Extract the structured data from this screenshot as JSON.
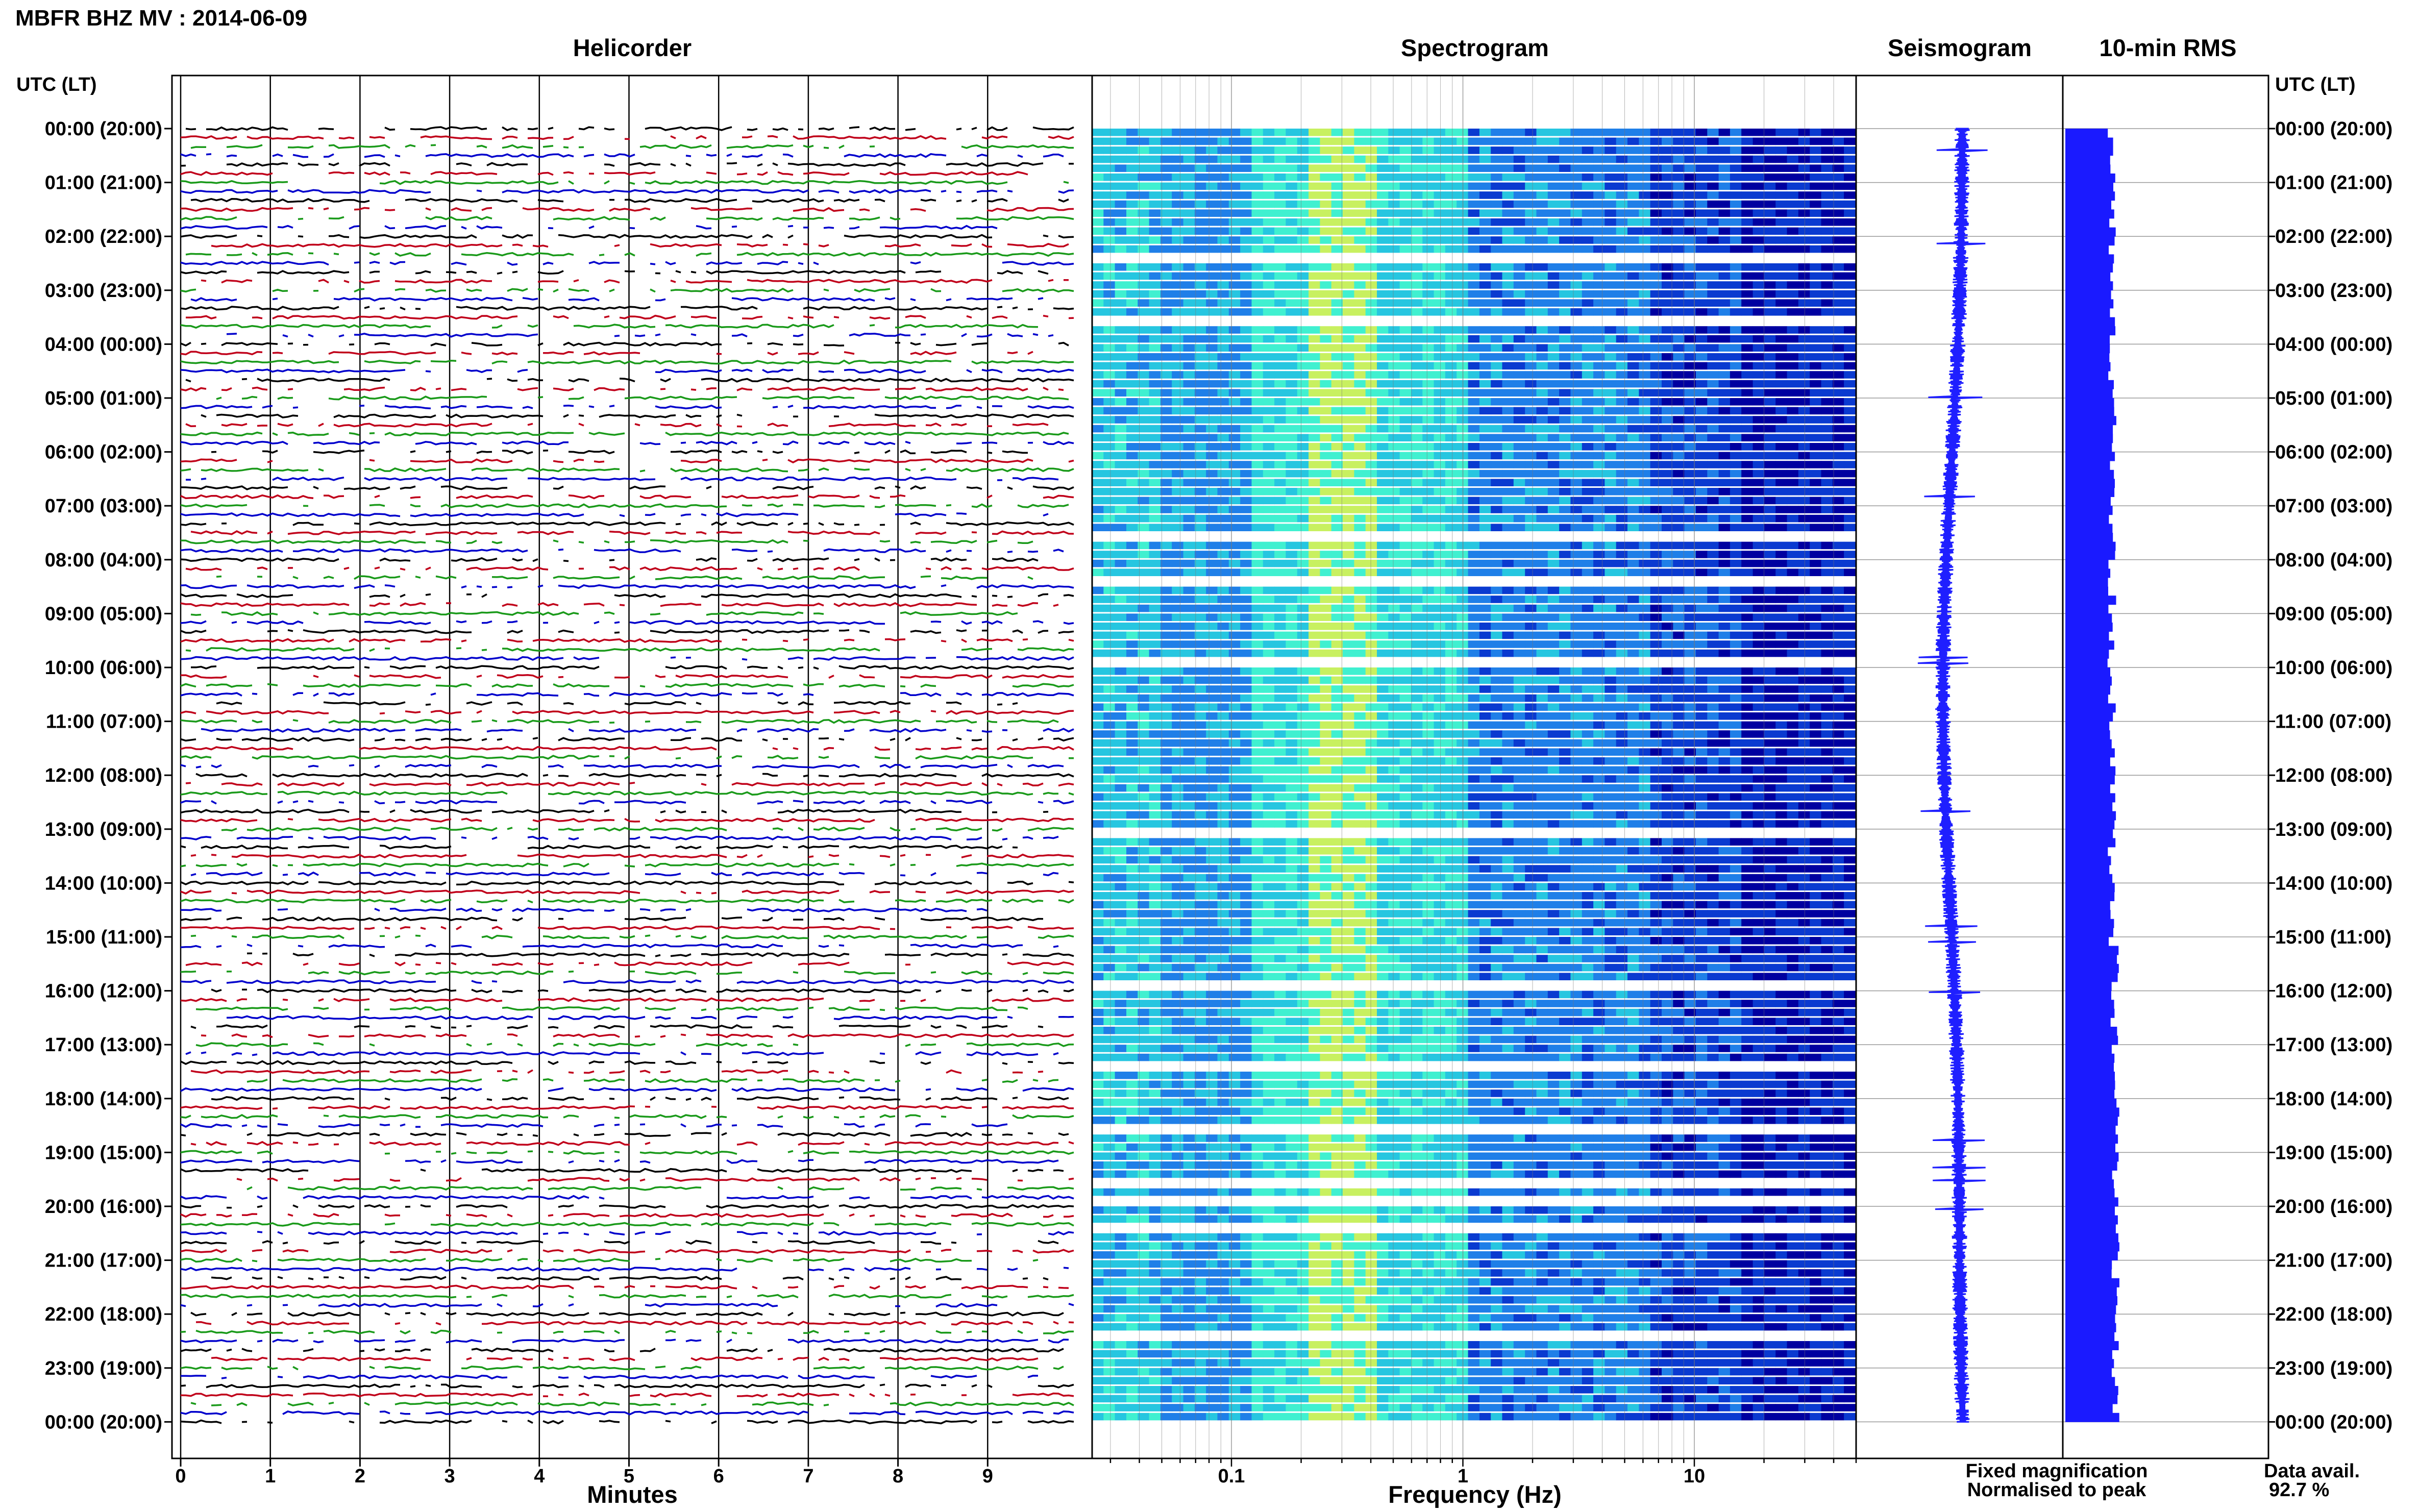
{
  "figure": {
    "title": "MBFR BHZ MV : 2014-06-09",
    "left_axis_label": "UTC (LT)",
    "right_axis_label": "UTC (LT)",
    "data_avail_label": "Data avail.",
    "data_avail_value": "92.7 %",
    "legend": [
      {
        "text": "Fixed magnification",
        "color": "#1a1aff"
      },
      {
        "text": "Normalised to peak",
        "color": "#e01010"
      }
    ]
  },
  "chart_data": [
    {
      "type": "line",
      "name": "helicorder",
      "title": "Helicorder",
      "xlabel": "Minutes",
      "ylabel": "UTC (LT)",
      "xlim": [
        0,
        10
      ],
      "x_ticks": [
        "0",
        "1",
        "2",
        "3",
        "4",
        "5",
        "6",
        "7",
        "8",
        "9"
      ],
      "y_ticks": [
        "00:00 (20:00)",
        "01:00 (21:00)",
        "02:00 (22:00)",
        "03:00 (23:00)",
        "04:00 (00:00)",
        "05:00 (01:00)",
        "06:00 (02:00)",
        "07:00 (03:00)",
        "08:00 (04:00)",
        "09:00 (05:00)",
        "10:00 (06:00)",
        "11:00 (07:00)",
        "12:00 (08:00)",
        "13:00 (09:00)",
        "14:00 (10:00)",
        "15:00 (11:00)",
        "16:00 (12:00)",
        "17:00 (13:00)",
        "18:00 (14:00)",
        "19:00 (15:00)",
        "20:00 (16:00)",
        "21:00 (17:00)",
        "22:00 (18:00)",
        "23:00 (19:00)",
        "00:00 (20:00)"
      ],
      "traces_per_hour": 6,
      "trace_minutes": 10,
      "trace_colors": [
        "#000000",
        "#c0001a",
        "#1a9a1a",
        "#0000cc"
      ],
      "grid": true
    },
    {
      "type": "heatmap",
      "name": "spectrogram",
      "title": "Spectrogram",
      "xlabel": "Frequency (Hz)",
      "x_scale": "log",
      "xlim": [
        0.025,
        50
      ],
      "x_ticks": [
        "0.1",
        "1",
        "10"
      ],
      "colormap": [
        "#0000a0",
        "#0a3ad0",
        "#1f7fe8",
        "#26c6e0",
        "#40f0d0",
        "#c8f060"
      ],
      "rows": 144,
      "grid": true
    },
    {
      "type": "line",
      "name": "seismogram",
      "title": "Seismogram",
      "samples": 144,
      "grid": true
    },
    {
      "type": "bar",
      "name": "rms",
      "title": "10-min RMS",
      "orientation": "horizontal",
      "samples": 144,
      "grid": true
    }
  ]
}
